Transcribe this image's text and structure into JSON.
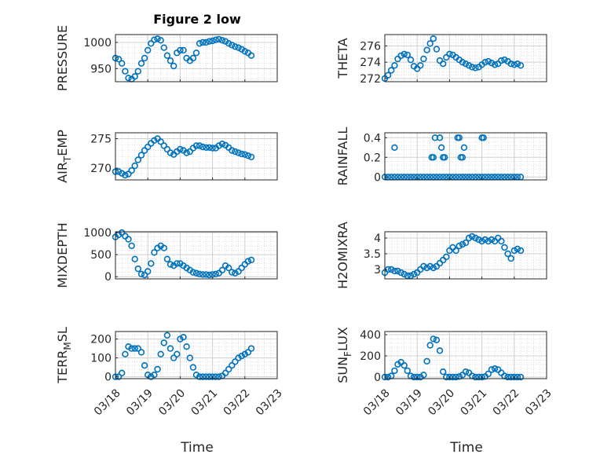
{
  "title": "Figure 2 low",
  "xlabel": "Time",
  "xticks": [
    "03/18",
    "03/19",
    "03/20",
    "03/21",
    "03/22",
    "03/23"
  ],
  "colors": {
    "marker": "#0072BD",
    "axes": "#262626",
    "grid": "#d0d0d0",
    "minor_grid": "#c8c8c8"
  },
  "chart_data": [
    {
      "id": "pressure",
      "type": "scatter",
      "ylabel": "PRESSURE",
      "ylim": [
        925,
        1015
      ],
      "yticks": [
        950,
        1000
      ],
      "ytick_labels": [
        "950",
        "1000"
      ],
      "grid": "major+minor",
      "x": [
        0,
        0.1,
        0.2,
        0.3,
        0.4,
        0.5,
        0.6,
        0.7,
        0.8,
        0.9,
        1,
        1.1,
        1.2,
        1.3,
        1.4,
        1.5,
        1.6,
        1.7,
        1.8,
        1.9,
        2,
        2.1,
        2.2,
        2.3,
        2.4,
        2.5,
        2.6,
        2.7,
        2.8,
        2.9,
        3,
        3.1,
        3.2,
        3.3,
        3.4,
        3.5,
        3.6,
        3.7,
        3.8,
        3.9,
        4,
        4.1,
        4.2
      ],
      "y": [
        970,
        968,
        960,
        945,
        932,
        930,
        935,
        945,
        960,
        970,
        985,
        998,
        1005,
        1007,
        1004,
        990,
        975,
        965,
        955,
        980,
        985,
        985,
        970,
        965,
        970,
        980,
        998,
        1000,
        1000,
        1002,
        1003,
        1005,
        1006,
        1004,
        1002,
        998,
        995,
        992,
        990,
        987,
        983,
        980,
        975
      ]
    },
    {
      "id": "theta",
      "type": "scatter",
      "ylabel": "THETA",
      "ylim": [
        271.6,
        277.4
      ],
      "yticks": [
        272,
        274,
        276
      ],
      "ytick_labels": [
        "272",
        "274",
        "276"
      ],
      "grid": "major+minor",
      "x": [
        0,
        0.1,
        0.2,
        0.3,
        0.4,
        0.5,
        0.6,
        0.7,
        0.8,
        0.9,
        1,
        1.1,
        1.2,
        1.3,
        1.4,
        1.5,
        1.6,
        1.7,
        1.8,
        1.9,
        2,
        2.1,
        2.2,
        2.3,
        2.4,
        2.5,
        2.6,
        2.7,
        2.8,
        2.9,
        3,
        3.1,
        3.2,
        3.3,
        3.4,
        3.5,
        3.6,
        3.7,
        3.8,
        3.9,
        4,
        4.1,
        4.2
      ],
      "y": [
        272,
        272.4,
        273,
        273.6,
        274.4,
        274.8,
        275,
        274.9,
        274.3,
        273.5,
        273.2,
        273.6,
        274.4,
        275.5,
        276.3,
        276.9,
        275.6,
        274.2,
        273.8,
        274.6,
        275,
        274.9,
        274.6,
        274.3,
        274,
        273.8,
        273.6,
        273.4,
        273.3,
        273.4,
        273.7,
        274,
        274.1,
        273.9,
        273.7,
        273.8,
        274.2,
        274.3,
        274.1,
        273.8,
        273.7,
        273.8,
        273.6
      ]
    },
    {
      "id": "air_temp",
      "type": "scatter",
      "ylabel": "AIR",
      "ylabel_sub": "T",
      "ylabel_rest": "EMP",
      "ylim": [
        268,
        276
      ],
      "yticks": [
        270,
        275
      ],
      "ytick_labels": [
        "270",
        "275"
      ],
      "grid": "major+minor",
      "x": [
        0,
        0.1,
        0.2,
        0.3,
        0.4,
        0.5,
        0.6,
        0.7,
        0.8,
        0.9,
        1,
        1.1,
        1.2,
        1.3,
        1.4,
        1.5,
        1.6,
        1.7,
        1.8,
        1.9,
        2,
        2.1,
        2.2,
        2.3,
        2.4,
        2.5,
        2.6,
        2.7,
        2.8,
        2.9,
        3,
        3.1,
        3.2,
        3.3,
        3.4,
        3.5,
        3.6,
        3.7,
        3.8,
        3.9,
        4,
        4.1,
        4.2
      ],
      "y": [
        269.4,
        269.4,
        269.1,
        268.8,
        269,
        269.6,
        270.4,
        271.4,
        272.2,
        273,
        273.6,
        274.2,
        274.7,
        275,
        274.5,
        273.8,
        273.2,
        272.6,
        272.3,
        272.8,
        273.2,
        273,
        272.6,
        272.8,
        273.4,
        273.8,
        273.8,
        273.6,
        273.5,
        273.5,
        273.4,
        273.4,
        273.8,
        274.1,
        273.9,
        273.5,
        273,
        272.8,
        272.6,
        272.4,
        272.3,
        272.1,
        271.9
      ]
    },
    {
      "id": "rainfall",
      "type": "scatter",
      "ylabel": "RAINFALL",
      "ylim": [
        -0.03,
        0.45
      ],
      "yticks": [
        0,
        0.2,
        0.4
      ],
      "ytick_labels": [
        "0",
        "0.2",
        "0.4"
      ],
      "grid": "major+minor",
      "x": [
        0,
        0.1,
        0.2,
        0.3,
        0.4,
        0.5,
        0.6,
        0.7,
        0.8,
        0.9,
        1,
        1.1,
        1.2,
        1.3,
        1.4,
        1.5,
        1.6,
        1.7,
        1.8,
        1.9,
        2,
        2.1,
        2.2,
        2.3,
        2.4,
        2.5,
        2.6,
        2.7,
        2.8,
        2.9,
        3,
        3.1,
        3.2,
        3.3,
        3.4,
        3.5,
        3.6,
        3.7,
        3.8,
        3.9,
        4,
        4.1,
        4.2,
        0.3,
        1.45,
        1.5,
        1.55,
        1.7,
        1.75,
        1.8,
        1.85,
        2.25,
        2.3,
        2.35,
        2.4,
        2.45,
        3.0,
        3.05
      ],
      "y": [
        0,
        0,
        0,
        0,
        0,
        0,
        0,
        0,
        0,
        0,
        0,
        0,
        0,
        0,
        0,
        0,
        0,
        0,
        0,
        0,
        0,
        0,
        0,
        0,
        0,
        0,
        0,
        0,
        0,
        0,
        0,
        0,
        0,
        0,
        0,
        0,
        0,
        0,
        0,
        0,
        0,
        0,
        0,
        0.3,
        0.2,
        0.2,
        0.4,
        0.4,
        0.3,
        0.2,
        0.2,
        0.4,
        0.4,
        0.2,
        0.2,
        0.3,
        0.4,
        0.4
      ]
    },
    {
      "id": "mixdepth",
      "type": "scatter",
      "ylabel": "MIXDEPTH",
      "ylim": [
        -50,
        1020
      ],
      "yticks": [
        0,
        500,
        1000
      ],
      "ytick_labels": [
        "0",
        "500",
        "1000"
      ],
      "grid": "major+minor",
      "x": [
        0,
        0.1,
        0.2,
        0.3,
        0.4,
        0.5,
        0.6,
        0.7,
        0.8,
        0.9,
        1,
        1.1,
        1.2,
        1.3,
        1.4,
        1.5,
        1.6,
        1.7,
        1.8,
        1.9,
        2,
        2.1,
        2.2,
        2.3,
        2.4,
        2.5,
        2.6,
        2.7,
        2.8,
        2.9,
        3,
        3.1,
        3.2,
        3.3,
        3.4,
        3.5,
        3.6,
        3.7,
        3.8,
        3.9,
        4,
        4.1,
        4.2
      ],
      "y": [
        900,
        950,
        1000,
        920,
        850,
        700,
        400,
        180,
        60,
        40,
        120,
        300,
        550,
        650,
        700,
        650,
        400,
        280,
        250,
        300,
        300,
        250,
        200,
        150,
        100,
        80,
        60,
        50,
        50,
        40,
        50,
        60,
        80,
        150,
        250,
        200,
        100,
        80,
        120,
        200,
        280,
        350,
        380
      ]
    },
    {
      "id": "h2omixra",
      "type": "scatter",
      "ylabel": "H2OMIXRA",
      "ylim": [
        2.7,
        4.2
      ],
      "yticks": [
        3,
        3.5,
        4
      ],
      "ytick_labels": [
        "3",
        "3.5",
        "4"
      ],
      "grid": "major+minor",
      "x": [
        0,
        0.1,
        0.2,
        0.3,
        0.4,
        0.5,
        0.6,
        0.7,
        0.8,
        0.9,
        1,
        1.1,
        1.2,
        1.3,
        1.4,
        1.5,
        1.6,
        1.7,
        1.8,
        1.9,
        2,
        2.1,
        2.2,
        2.3,
        2.4,
        2.5,
        2.6,
        2.7,
        2.8,
        2.9,
        3,
        3.1,
        3.2,
        3.3,
        3.4,
        3.5,
        3.6,
        3.7,
        3.8,
        3.9,
        4,
        4.1,
        4.2
      ],
      "y": [
        2.9,
        3,
        3,
        2.95,
        2.95,
        2.9,
        2.85,
        2.8,
        2.8,
        2.85,
        2.9,
        3,
        3.1,
        3.05,
        3.1,
        3.05,
        3.1,
        3.2,
        3.3,
        3.4,
        3.6,
        3.7,
        3.6,
        3.75,
        3.8,
        3.85,
        4,
        4.05,
        4,
        3.95,
        3.9,
        3.95,
        3.9,
        3.95,
        3.9,
        4,
        3.9,
        3.7,
        3.5,
        3.35,
        3.6,
        3.65,
        3.6
      ]
    },
    {
      "id": "terr_msl",
      "type": "scatter",
      "ylabel": "TERR",
      "ylabel_sub": "M",
      "ylabel_rest": "SL",
      "ylim": [
        -10,
        240
      ],
      "yticks": [
        0,
        100,
        200
      ],
      "ytick_labels": [
        "0",
        "100",
        "200"
      ],
      "grid": "major+minor",
      "x": [
        0,
        0.1,
        0.2,
        0.3,
        0.4,
        0.5,
        0.6,
        0.7,
        0.8,
        0.9,
        1,
        1.1,
        1.2,
        1.3,
        1.4,
        1.5,
        1.6,
        1.7,
        1.8,
        1.9,
        2,
        2.1,
        2.2,
        2.3,
        2.4,
        2.5,
        2.6,
        2.7,
        2.8,
        2.9,
        3,
        3.1,
        3.2,
        3.3,
        3.4,
        3.5,
        3.6,
        3.7,
        3.8,
        3.9,
        4,
        4.1,
        4.2
      ],
      "y": [
        0,
        0,
        20,
        120,
        160,
        150,
        150,
        150,
        130,
        60,
        10,
        0,
        10,
        40,
        120,
        180,
        220,
        150,
        100,
        120,
        200,
        210,
        160,
        100,
        50,
        10,
        0,
        0,
        0,
        0,
        0,
        0,
        0,
        5,
        20,
        40,
        60,
        80,
        100,
        110,
        120,
        130,
        150
      ]
    },
    {
      "id": "sun_flux",
      "type": "scatter",
      "ylabel": "SUN",
      "ylabel_sub": "F",
      "ylabel_rest": "LUX",
      "ylim": [
        -15,
        430
      ],
      "yticks": [
        0,
        200,
        400
      ],
      "ytick_labels": [
        "0",
        "200",
        "400"
      ],
      "grid": "major+minor",
      "x": [
        0,
        0.1,
        0.2,
        0.3,
        0.4,
        0.5,
        0.6,
        0.7,
        0.8,
        0.9,
        1,
        1.1,
        1.2,
        1.3,
        1.4,
        1.5,
        1.6,
        1.7,
        1.8,
        1.9,
        2,
        2.1,
        2.2,
        2.3,
        2.4,
        2.5,
        2.6,
        2.7,
        2.8,
        2.9,
        3,
        3.1,
        3.2,
        3.3,
        3.4,
        3.5,
        3.6,
        3.7,
        3.8,
        3.9,
        4,
        4.1,
        4.2
      ],
      "y": [
        0,
        0,
        10,
        60,
        120,
        140,
        110,
        60,
        10,
        0,
        0,
        0,
        20,
        150,
        300,
        360,
        350,
        250,
        50,
        0,
        0,
        0,
        0,
        5,
        20,
        50,
        40,
        10,
        0,
        0,
        0,
        5,
        30,
        70,
        80,
        70,
        40,
        10,
        0,
        0,
        0,
        0,
        0
      ]
    }
  ]
}
